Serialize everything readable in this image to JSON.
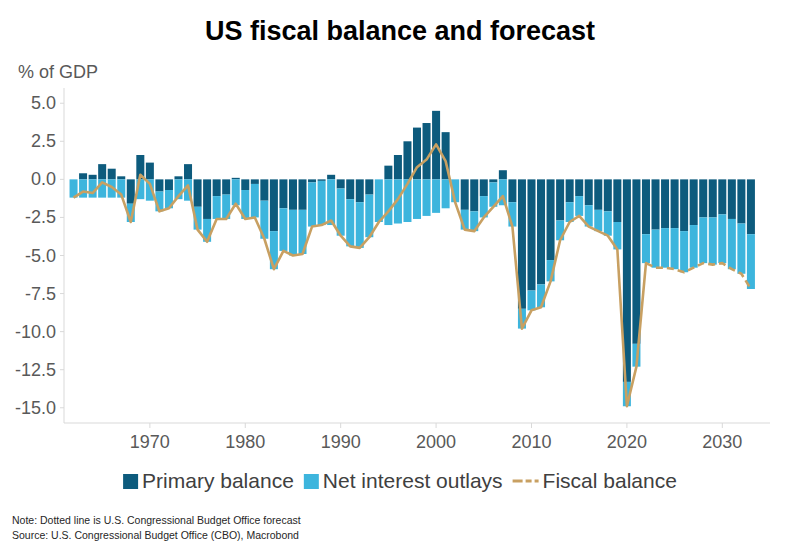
{
  "chart_data": {
    "type": "bar",
    "title": "US fiscal balance and forecast",
    "y_label": "% of GDP",
    "note": "Note: Dotted line is U.S. Congressional Budget Office forecast",
    "source": "Source: U.S. Congressional Budget Office (CBO), Macrobond",
    "stacked": true,
    "grid": false,
    "legend": "bottom",
    "x": [
      1962,
      1963,
      1964,
      1965,
      1966,
      1967,
      1968,
      1969,
      1970,
      1971,
      1972,
      1973,
      1974,
      1975,
      1976,
      1977,
      1978,
      1979,
      1980,
      1981,
      1982,
      1983,
      1984,
      1985,
      1986,
      1987,
      1988,
      1989,
      1990,
      1991,
      1992,
      1993,
      1994,
      1995,
      1996,
      1997,
      1998,
      1999,
      2000,
      2001,
      2002,
      2003,
      2004,
      2005,
      2006,
      2007,
      2008,
      2009,
      2010,
      2011,
      2012,
      2013,
      2014,
      2015,
      2016,
      2017,
      2018,
      2019,
      2020,
      2021,
      2022,
      2023,
      2024,
      2025,
      2026,
      2027,
      2028,
      2029,
      2030,
      2031,
      2032,
      2033
    ],
    "xlim": [
      1961,
      2035
    ],
    "xticks": [
      1970,
      1980,
      1990,
      2000,
      2010,
      2020,
      2030
    ],
    "ylim": [
      -16,
      6
    ],
    "yticks": [
      {
        "value": -15,
        "label": "-15.0"
      },
      {
        "value": -12.5,
        "label": "-12.5"
      },
      {
        "value": -10,
        "label": "-10.0"
      },
      {
        "value": -7.5,
        "label": "-7.5"
      },
      {
        "value": -5,
        "label": "-5.0"
      },
      {
        "value": -2.5,
        "label": "-2.5"
      },
      {
        "value": 0,
        "label": "0.0"
      },
      {
        "value": 2.5,
        "label": "2.5"
      },
      {
        "value": 5,
        "label": "5.0"
      }
    ],
    "series": [
      {
        "name": "Primary balance",
        "type": "bar",
        "color": "#0d5b7d",
        "values": [
          0.0,
          0.4,
          0.3,
          1.0,
          0.7,
          0.2,
          -1.6,
          1.6,
          1.1,
          -0.8,
          -0.7,
          0.2,
          1.0,
          -1.8,
          -2.6,
          -1.1,
          -1.0,
          0.1,
          -0.7,
          -0.3,
          -1.4,
          -3.4,
          -1.9,
          -2.0,
          -2.0,
          -0.2,
          -0.1,
          0.3,
          -0.6,
          -1.3,
          -1.5,
          -1.0,
          0.0,
          0.9,
          1.6,
          2.5,
          3.4,
          3.7,
          4.5,
          3.1,
          0.0,
          -2.0,
          -2.1,
          -1.1,
          -0.2,
          0.6,
          -1.5,
          -8.5,
          -7.3,
          -6.9,
          -5.3,
          -2.7,
          -1.5,
          -1.1,
          -1.7,
          -2.0,
          -2.1,
          -2.8,
          -13.3,
          -10.8,
          -3.6,
          -3.3,
          -3.2,
          -3.2,
          -3.4,
          -3.0,
          -2.5,
          -2.5,
          -2.3,
          -2.6,
          -2.9,
          -3.6
        ]
      },
      {
        "name": "Net interest outlays",
        "type": "bar",
        "color": "#3db5dd",
        "values": [
          -1.2,
          -1.2,
          -1.2,
          -1.2,
          -1.2,
          -1.2,
          -1.2,
          -1.3,
          -1.4,
          -1.3,
          -1.2,
          -1.3,
          -1.4,
          -1.5,
          -1.5,
          -1.5,
          -1.6,
          -1.7,
          -1.9,
          -2.2,
          -2.5,
          -2.5,
          -2.8,
          -3.0,
          -2.9,
          -2.9,
          -2.9,
          -3.0,
          -3.1,
          -3.1,
          -3.0,
          -2.8,
          -2.8,
          -3.0,
          -2.9,
          -2.8,
          -2.6,
          -2.4,
          -2.2,
          -1.9,
          -1.5,
          -1.3,
          -1.3,
          -1.4,
          -1.6,
          -1.7,
          -1.6,
          -1.3,
          -1.3,
          -1.5,
          -1.4,
          -1.3,
          -1.3,
          -1.3,
          -1.4,
          -1.4,
          -1.6,
          -1.8,
          -1.6,
          -1.5,
          -1.9,
          -2.5,
          -2.6,
          -2.7,
          -2.7,
          -2.8,
          -3.0,
          -3.1,
          -3.2,
          -3.3,
          -3.3,
          -3.6
        ]
      },
      {
        "name": "Fiscal balance",
        "type": "line",
        "color": "#c8a062",
        "line_style": "dashed",
        "forecast_from": 2023,
        "values": [
          -1.2,
          -0.8,
          -0.9,
          -0.2,
          -0.5,
          -1.0,
          -2.8,
          0.3,
          -0.3,
          -2.1,
          -1.9,
          -1.1,
          -0.4,
          -3.3,
          -4.1,
          -2.6,
          -2.6,
          -1.6,
          -2.6,
          -2.5,
          -3.9,
          -5.9,
          -4.7,
          -5.0,
          -4.9,
          -3.1,
          -3.0,
          -2.7,
          -3.7,
          -4.4,
          -4.5,
          -3.8,
          -2.8,
          -2.1,
          -1.3,
          -0.3,
          0.8,
          1.3,
          2.3,
          1.2,
          -1.5,
          -3.3,
          -3.4,
          -2.5,
          -1.8,
          -1.1,
          -3.1,
          -9.8,
          -8.6,
          -8.4,
          -6.7,
          -4.0,
          -2.8,
          -2.4,
          -3.1,
          -3.4,
          -3.7,
          -4.6,
          -14.9,
          -12.3,
          -5.5,
          -5.8,
          -5.8,
          -5.9,
          -6.1,
          -5.8,
          -5.5,
          -5.6,
          -5.5,
          -5.9,
          -6.2,
          -7.2
        ]
      }
    ]
  }
}
